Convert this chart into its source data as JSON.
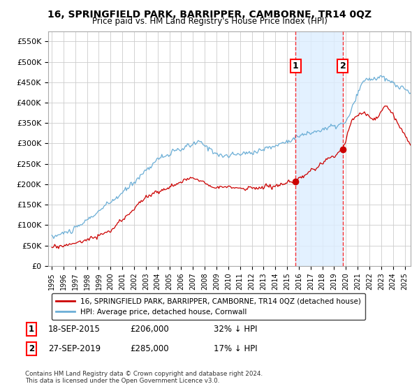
{
  "title": "16, SPRINGFIELD PARK, BARRIPPER, CAMBORNE, TR14 0QZ",
  "subtitle": "Price paid vs. HM Land Registry's House Price Index (HPI)",
  "ylim": [
    0,
    575000
  ],
  "yticks": [
    0,
    50000,
    100000,
    150000,
    200000,
    250000,
    300000,
    350000,
    400000,
    450000,
    500000,
    550000
  ],
  "ytick_labels": [
    "£0",
    "£50K",
    "£100K",
    "£150K",
    "£200K",
    "£250K",
    "£300K",
    "£350K",
    "£400K",
    "£450K",
    "£500K",
    "£550K"
  ],
  "hpi_color": "#6baed6",
  "price_color": "#cc0000",
  "marker_color": "#cc0000",
  "transaction1_date": 2015.72,
  "transaction1_price": 206000,
  "transaction2_date": 2019.74,
  "transaction2_price": 285000,
  "legend_label_property": "16, SPRINGFIELD PARK, BARRIPPER, CAMBORNE, TR14 0QZ (detached house)",
  "legend_label_hpi": "HPI: Average price, detached house, Cornwall",
  "note1_date": "18-SEP-2015",
  "note1_price": "£206,000",
  "note1_note": "32% ↓ HPI",
  "note2_date": "27-SEP-2019",
  "note2_price": "£285,000",
  "note2_note": "17% ↓ HPI",
  "footer": "Contains HM Land Registry data © Crown copyright and database right 2024.\nThis data is licensed under the Open Government Licence v3.0.",
  "bg_color": "#ffffff",
  "grid_color": "#cccccc",
  "shaded_region_color": "#ddeeff"
}
